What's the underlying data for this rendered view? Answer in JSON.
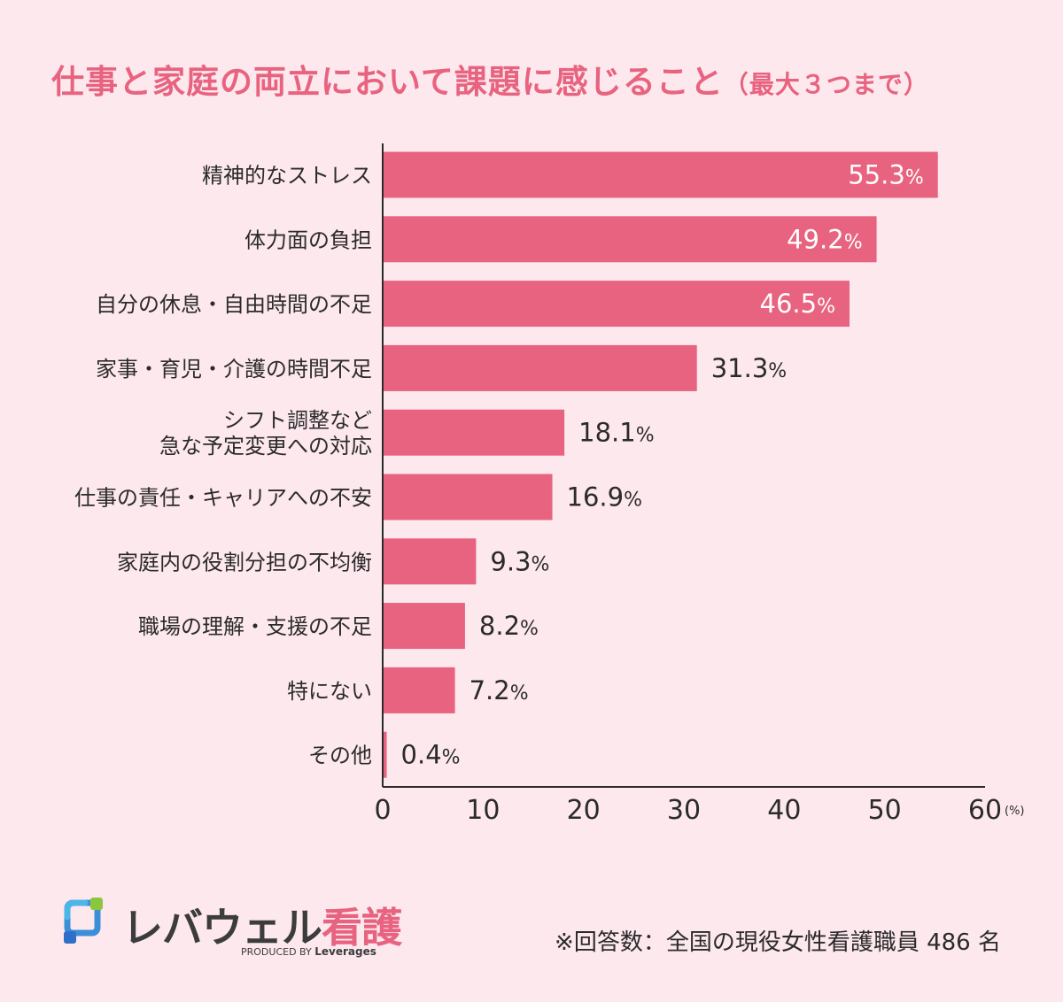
{
  "title": {
    "main": "仕事と家庭の両立において課題に感じること",
    "sub": "（最大３つまで）"
  },
  "colors": {
    "background": "#fde8ee",
    "bar": "#e8637f",
    "title": "#e8637f",
    "text": "#2b2b2b"
  },
  "chart_data": {
    "type": "bar",
    "orientation": "horizontal",
    "title": "仕事と家庭の両立において課題に感じること（最大３つまで）",
    "xlabel": "",
    "ylabel": "",
    "unit_label": "(%)",
    "value_suffix": "%",
    "xlim": [
      0,
      60
    ],
    "xticks": [
      0,
      10,
      20,
      30,
      40,
      50,
      60
    ],
    "grid": false,
    "legend": "none",
    "categories": [
      [
        "精神的なストレス"
      ],
      [
        "体力面の負担"
      ],
      [
        "自分の休息・自由時間の不足"
      ],
      [
        "家事・育児・介護の時間不足"
      ],
      [
        "シフト調整など",
        "急な予定変更への対応"
      ],
      [
        "仕事の責任・キャリアへの不安"
      ],
      [
        "家庭内の役割分担の不均衡"
      ],
      [
        "職場の理解・支援の不足"
      ],
      [
        "特にない"
      ],
      [
        "その他"
      ]
    ],
    "values": [
      55.3,
      49.2,
      46.5,
      31.3,
      18.1,
      16.9,
      9.3,
      8.2,
      7.2,
      0.4
    ]
  },
  "logo": {
    "name_main": "レバウェル",
    "name_accent": "看護",
    "produced_prefix": "PRODUCED BY",
    "produced_brand": "Leverages",
    "icon": "levwell-logo-icon"
  },
  "note": "※回答数：全国の現役女性看護職員 486 名"
}
